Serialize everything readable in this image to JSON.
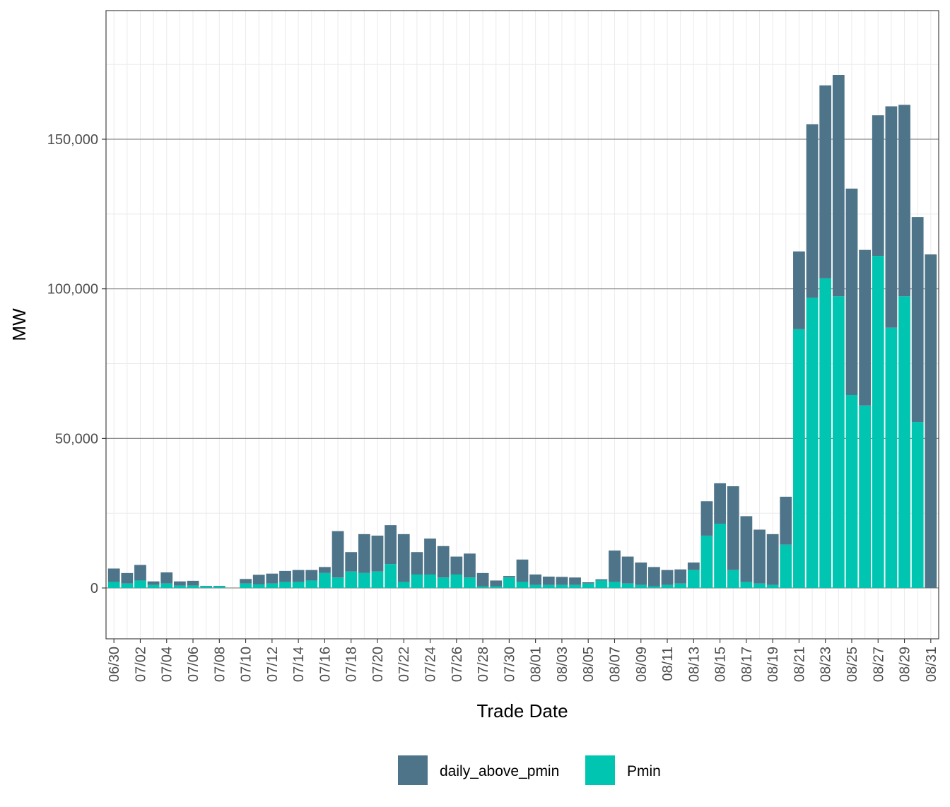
{
  "chart_data": {
    "type": "bar",
    "stacked": true,
    "xlabel": "Trade Date",
    "ylabel": "MW",
    "ylim": [
      -17000,
      193000
    ],
    "yticks": [
      0,
      50000,
      100000,
      150000
    ],
    "ytick_labels": [
      "0",
      "50,000",
      "100,000",
      "150,000"
    ],
    "grid": true,
    "legend_position": "bottom",
    "categories": [
      "06/30",
      "07/01",
      "07/02",
      "07/03",
      "07/04",
      "07/05",
      "07/06",
      "07/07",
      "07/08",
      "07/09",
      "07/10",
      "07/11",
      "07/12",
      "07/13",
      "07/14",
      "07/15",
      "07/16",
      "07/17",
      "07/18",
      "07/19",
      "07/20",
      "07/21",
      "07/22",
      "07/23",
      "07/24",
      "07/25",
      "07/26",
      "07/27",
      "07/28",
      "07/29",
      "07/30",
      "07/31",
      "08/01",
      "08/02",
      "08/03",
      "08/04",
      "08/05",
      "08/06",
      "08/07",
      "08/08",
      "08/09",
      "08/10",
      "08/11",
      "08/12",
      "08/13",
      "08/14",
      "08/15",
      "08/16",
      "08/17",
      "08/18",
      "08/19",
      "08/20",
      "08/21",
      "08/22",
      "08/23",
      "08/24",
      "08/25",
      "08/26",
      "08/27",
      "08/28",
      "08/29",
      "08/30",
      "08/31"
    ],
    "xtick_labels": [
      "06/30",
      "07/02",
      "07/04",
      "07/06",
      "07/08",
      "07/10",
      "07/12",
      "07/14",
      "07/16",
      "07/18",
      "07/20",
      "07/22",
      "07/24",
      "07/26",
      "07/28",
      "07/30",
      "08/01",
      "08/03",
      "08/05",
      "08/07",
      "08/09",
      "08/11",
      "08/13",
      "08/15",
      "08/17",
      "08/19",
      "08/21",
      "08/23",
      "08/25",
      "08/27",
      "08/29",
      "08/31"
    ],
    "series": [
      {
        "name": "Pmin",
        "color": "#00c5b0",
        "values": [
          2000,
          1500,
          2500,
          1000,
          1500,
          800,
          800,
          500,
          500,
          0,
          1500,
          1200,
          1500,
          2000,
          2000,
          2500,
          5000,
          3500,
          5500,
          5000,
          5500,
          8000,
          2000,
          4500,
          4500,
          3500,
          4500,
          3500,
          500,
          500,
          3500,
          2000,
          1000,
          1000,
          1000,
          1000,
          1500,
          2500,
          2000,
          1500,
          1000,
          500,
          1000,
          1500,
          6000,
          17500,
          21500,
          6000,
          2000,
          1500,
          1000,
          14500,
          86500,
          97000,
          103500,
          97500,
          64500,
          61000,
          111000,
          87000,
          97500,
          55500,
          0
        ]
      },
      {
        "name": "daily_above_pmin",
        "color": "#4e7489",
        "values": [
          4500,
          3500,
          5200,
          1200,
          3700,
          1400,
          1600,
          200,
          200,
          0,
          1500,
          3200,
          3300,
          3700,
          4000,
          3500,
          2000,
          15500,
          6500,
          13000,
          12000,
          13000,
          16000,
          7500,
          12000,
          10500,
          6000,
          8000,
          4500,
          2000,
          500,
          7500,
          3500,
          2800,
          2700,
          2500,
          400,
          400,
          10500,
          9000,
          7500,
          6500,
          5000,
          4700,
          2500,
          11500,
          13500,
          28000,
          22000,
          18000,
          17000,
          16000,
          26000,
          58000,
          64500,
          74000,
          69000,
          52000,
          47000,
          74000,
          64000,
          68500,
          111500
        ]
      }
    ]
  }
}
